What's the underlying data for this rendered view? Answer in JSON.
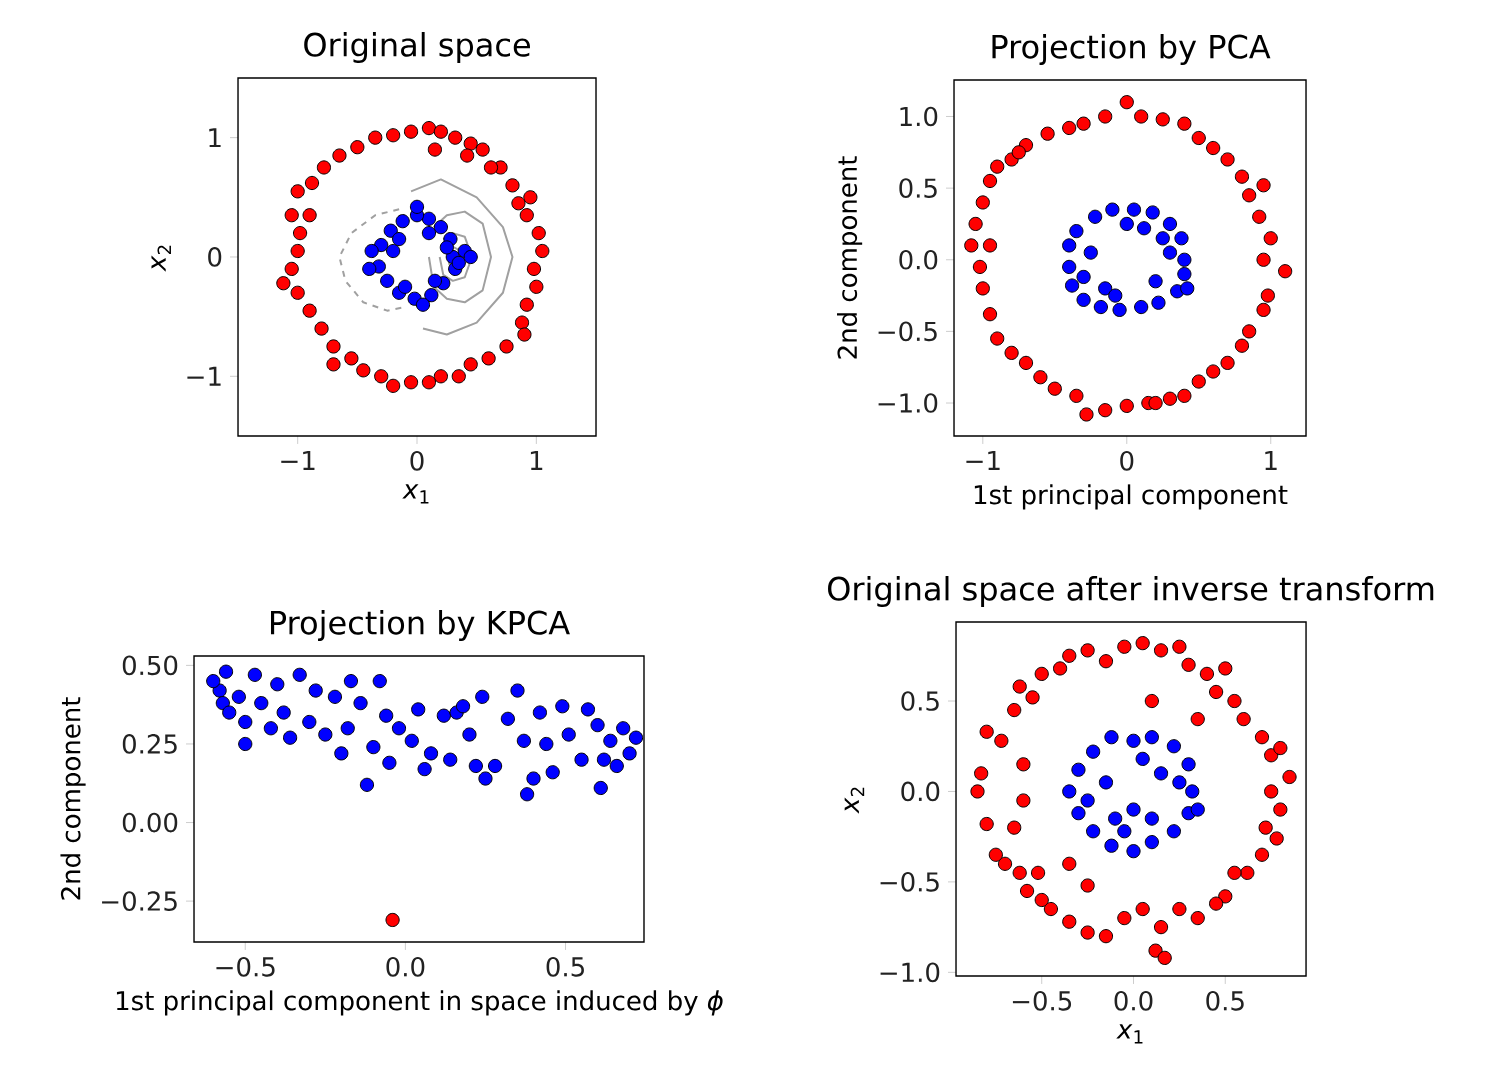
{
  "chart_data": [
    {
      "type": "scatter",
      "title": "Original space",
      "xlabel": "*x*$_{1}$",
      "ylabel": "*x*$_{2}$",
      "xlim": [
        -1.5,
        1.5
      ],
      "ylim": [
        -1.5,
        1.5
      ],
      "xticks": [
        {
          "value": -1,
          "label": "−1"
        },
        0,
        1
      ],
      "yticks": [
        {
          "value": -1,
          "label": "−1"
        },
        0,
        1
      ],
      "marker": "circle",
      "series": [
        {
          "type": "line",
          "marker": "none",
          "line_style": "dashed",
          "color": "#a0a0a0",
          "x": [
            -0.15,
            -0.35,
            -0.55,
            -0.65,
            -0.6,
            -0.45,
            -0.25,
            -0.1
          ],
          "values": [
            0.4,
            0.35,
            0.2,
            0.0,
            -0.2,
            -0.38,
            -0.45,
            -0.42
          ]
        },
        {
          "type": "line",
          "marker": "none",
          "line_style": "solid",
          "color": "#a0a0a0",
          "x": [
            -0.05,
            0.2,
            0.5,
            0.72,
            0.8,
            0.72,
            0.5,
            0.25,
            0.05
          ],
          "values": [
            0.55,
            0.65,
            0.5,
            0.25,
            0.0,
            -0.3,
            -0.55,
            -0.65,
            -0.6
          ]
        },
        {
          "type": "line",
          "marker": "none",
          "line_style": "solid",
          "color": "#a0a0a0",
          "x": [
            0.14,
            0.25,
            0.4,
            0.55,
            0.62,
            0.55,
            0.4,
            0.25,
            0.14,
            0.1
          ],
          "values": [
            0.25,
            0.35,
            0.38,
            0.28,
            0.0,
            -0.28,
            -0.38,
            -0.35,
            -0.25,
            0.0
          ]
        },
        {
          "type": "line",
          "marker": "none",
          "line_style": "solid",
          "color": "#a0a0a0",
          "x": [
            0.22,
            0.3,
            0.4,
            0.46,
            0.4,
            0.3,
            0.22,
            0.19
          ],
          "values": [
            0.15,
            0.2,
            0.17,
            0.0,
            -0.17,
            -0.2,
            -0.15,
            0.0
          ]
        },
        {
          "type": "line",
          "marker": "none",
          "line_style": "solid",
          "color": "#a0a0a0",
          "x": [
            0.27,
            0.31,
            0.35,
            0.36,
            0.35,
            0.31,
            0.27,
            0.26
          ],
          "values": [
            0.06,
            0.08,
            0.06,
            0.0,
            -0.06,
            -0.08,
            -0.06,
            0.0
          ]
        },
        {
          "color": "#ff0000",
          "x": [
            0.1,
            0.2,
            0.32,
            0.45,
            0.55,
            0.7,
            0.8,
            0.95,
            0.92,
            1.02,
            1.05,
            0.98,
            1.0,
            0.92,
            0.88,
            0.9,
            0.75,
            0.6,
            0.45,
            0.35,
            0.2,
            0.1,
            -0.05,
            -0.2,
            -0.3,
            -0.45,
            -0.55,
            -0.7,
            -0.8,
            -0.9,
            -1.0,
            -1.12,
            -1.05,
            -1.0,
            -0.98,
            -1.05,
            -1.0,
            -0.88,
            -0.78,
            -0.65,
            -0.5,
            -0.35,
            -0.2,
            -0.05,
            0.15,
            0.42,
            0.62,
            0.85,
            -0.9,
            -0.7
          ],
          "values": [
            1.08,
            1.05,
            1.0,
            0.95,
            0.9,
            0.75,
            0.6,
            0.5,
            0.35,
            0.2,
            0.05,
            -0.1,
            -0.25,
            -0.4,
            -0.55,
            -0.65,
            -0.75,
            -0.85,
            -0.9,
            -1.0,
            -1.0,
            -1.05,
            -1.05,
            -1.08,
            -1.0,
            -0.95,
            -0.85,
            -0.75,
            -0.6,
            -0.45,
            -0.3,
            -0.22,
            -0.1,
            0.05,
            0.2,
            0.35,
            0.55,
            0.62,
            0.75,
            0.85,
            0.92,
            1.0,
            1.02,
            1.05,
            0.9,
            0.85,
            0.75,
            0.45,
            0.35,
            -0.9
          ]
        },
        {
          "color": "#0000ff",
          "x": [
            0.3,
            0.28,
            0.2,
            0.1,
            0.0,
            -0.12,
            -0.22,
            -0.3,
            -0.38,
            -0.32,
            -0.25,
            -0.15,
            -0.02,
            0.12,
            0.22,
            0.32,
            0.4,
            0.25,
            -0.2,
            0.0,
            -0.1,
            0.15,
            0.35,
            -0.4,
            0.1,
            -0.15,
            0.45,
            0.05
          ],
          "values": [
            0.0,
            0.15,
            0.25,
            0.32,
            0.35,
            0.3,
            0.22,
            0.1,
            0.05,
            -0.08,
            -0.2,
            -0.3,
            -0.35,
            -0.32,
            -0.22,
            -0.1,
            0.05,
            0.08,
            0.05,
            0.42,
            -0.25,
            -0.2,
            -0.05,
            -0.1,
            0.2,
            0.15,
            0.0,
            -0.4
          ]
        }
      ]
    },
    {
      "type": "scatter",
      "title": "Projection by PCA",
      "xlabel": "1st principal component",
      "ylabel": "2nd component",
      "xlim": [
        -1.2,
        1.245
      ],
      "ylim": [
        -1.23,
        1.255
      ],
      "xticks": [
        {
          "value": -1,
          "label": "−1"
        },
        0,
        1
      ],
      "yticks": [
        {
          "value": -1,
          "label": "−1.0"
        },
        {
          "value": -0.5,
          "label": "−0.5"
        },
        {
          "value": 0,
          "label": "0.0"
        },
        0.5,
        {
          "value": 1,
          "label": "1.0"
        }
      ],
      "marker": "circle",
      "series": [
        {
          "color": "#ff0000",
          "x": [
            -1.08,
            -1.05,
            -1.0,
            -0.95,
            -0.9,
            -0.8,
            -0.7,
            -0.55,
            -0.4,
            -0.3,
            -0.15,
            0.0,
            0.1,
            0.25,
            0.4,
            0.5,
            0.6,
            0.7,
            0.8,
            0.85,
            0.95,
            0.92,
            1.0,
            0.95,
            1.1,
            0.98,
            0.95,
            0.85,
            0.8,
            0.7,
            0.6,
            0.5,
            0.4,
            0.3,
            0.15,
            0.0,
            -0.15,
            -0.28,
            -0.35,
            -0.5,
            -0.6,
            -0.7,
            -0.8,
            -0.9,
            -0.95,
            -1.0,
            -1.02,
            -0.95,
            -0.75,
            0.2
          ],
          "values": [
            0.1,
            0.25,
            0.4,
            0.55,
            0.65,
            0.7,
            0.8,
            0.88,
            0.92,
            0.95,
            1.0,
            1.1,
            1.0,
            0.98,
            0.95,
            0.85,
            0.78,
            0.7,
            0.58,
            0.45,
            0.52,
            0.3,
            0.15,
            0.0,
            -0.08,
            -0.25,
            -0.35,
            -0.5,
            -0.6,
            -0.72,
            -0.78,
            -0.85,
            -0.95,
            -0.97,
            -1.0,
            -1.02,
            -1.05,
            -1.08,
            -0.95,
            -0.9,
            -0.82,
            -0.72,
            -0.65,
            -0.55,
            -0.38,
            -0.2,
            -0.05,
            0.1,
            0.75,
            -1.0
          ]
        },
        {
          "color": "#0000ff",
          "x": [
            0.4,
            0.38,
            0.3,
            0.18,
            0.05,
            -0.1,
            -0.22,
            -0.35,
            -0.4,
            -0.4,
            -0.38,
            -0.3,
            -0.18,
            -0.05,
            0.1,
            0.22,
            0.35,
            0.4,
            0.25,
            -0.25,
            0.2,
            -0.15,
            0.0,
            0.3,
            -0.3,
            0.12,
            -0.08,
            0.42
          ],
          "values": [
            0.0,
            0.15,
            0.25,
            0.33,
            0.35,
            0.35,
            0.3,
            0.2,
            0.1,
            -0.05,
            -0.18,
            -0.28,
            -0.33,
            -0.35,
            -0.33,
            -0.3,
            -0.22,
            -0.1,
            0.15,
            0.05,
            -0.15,
            -0.2,
            0.25,
            0.05,
            -0.12,
            0.22,
            -0.25,
            -0.2
          ]
        }
      ]
    },
    {
      "type": "scatter",
      "title": "Projection by KPCA",
      "xlabel": "1st principal component in space induced by *ϕ*",
      "ylabel": "2nd component",
      "xlim": [
        -0.66,
        0.745
      ],
      "ylim": [
        -0.38,
        0.53
      ],
      "xticks": [
        {
          "value": -0.5,
          "label": "−0.5"
        },
        {
          "value": 0,
          "label": "0.0"
        },
        0.5
      ],
      "yticks": [
        {
          "value": -0.25,
          "label": "−0.25"
        },
        {
          "value": 0,
          "label": "0.00"
        },
        0.25,
        {
          "value": 0.5,
          "label": "0.50"
        }
      ],
      "marker": "circle",
      "series": [
        {
          "color": "#0000ff",
          "x": [
            -0.58,
            -0.6,
            -0.56,
            -0.57,
            -0.52,
            -0.5,
            -0.47,
            -0.45,
            -0.42,
            -0.4,
            -0.38,
            -0.36,
            -0.33,
            -0.3,
            -0.28,
            -0.25,
            -0.22,
            -0.2,
            -0.18,
            -0.17,
            -0.14,
            -0.12,
            -0.1,
            -0.08,
            -0.06,
            -0.05,
            -0.02,
            0.02,
            0.04,
            0.06,
            0.08,
            0.12,
            0.14,
            0.16,
            0.18,
            0.2,
            0.22,
            0.24,
            0.25,
            0.28,
            0.32,
            0.35,
            0.37,
            0.38,
            0.4,
            0.42,
            0.44,
            0.46,
            0.49,
            0.51,
            0.55,
            0.57,
            0.6,
            0.61,
            0.62,
            0.64,
            0.66,
            0.68,
            0.7,
            0.72,
            -0.5,
            -0.55
          ],
          "values": [
            0.42,
            0.45,
            0.48,
            0.38,
            0.4,
            0.32,
            0.47,
            0.38,
            0.3,
            0.44,
            0.35,
            0.27,
            0.47,
            0.32,
            0.42,
            0.28,
            0.4,
            0.22,
            0.3,
            0.45,
            0.38,
            0.12,
            0.24,
            0.45,
            0.34,
            0.19,
            0.3,
            0.26,
            0.36,
            0.17,
            0.22,
            0.34,
            0.2,
            0.35,
            0.37,
            0.28,
            0.18,
            0.4,
            0.14,
            0.18,
            0.33,
            0.42,
            0.26,
            0.09,
            0.14,
            0.35,
            0.25,
            0.16,
            0.37,
            0.28,
            0.2,
            0.36,
            0.31,
            0.11,
            0.2,
            0.26,
            0.18,
            0.3,
            0.22,
            0.27,
            0.25,
            0.35
          ]
        },
        {
          "color": "#ff0000",
          "x": [
            -0.04
          ],
          "values": [
            -0.31
          ]
        }
      ]
    },
    {
      "type": "scatter",
      "title": "Original space after inverse transform",
      "xlabel": "*x*$_{1}$",
      "ylabel": "*x*$_{2}$",
      "xlim": [
        -0.967,
        0.94
      ],
      "ylim": [
        -1.02,
        0.937
      ],
      "xticks": [
        {
          "value": -0.5,
          "label": "−0.5"
        },
        {
          "value": 0,
          "label": "0.0"
        },
        0.5
      ],
      "yticks": [
        {
          "value": -1,
          "label": "−1.0"
        },
        {
          "value": -0.5,
          "label": "−0.5"
        },
        {
          "value": 0,
          "label": "0.0"
        },
        0.5
      ],
      "marker": "circle",
      "series": [
        {
          "color": "#ff0000",
          "x": [
            -0.85,
            -0.83,
            -0.8,
            -0.72,
            -0.65,
            -0.62,
            -0.55,
            -0.5,
            -0.4,
            -0.35,
            -0.25,
            -0.15,
            -0.05,
            0.05,
            0.15,
            0.25,
            0.3,
            0.4,
            0.45,
            0.5,
            0.55,
            0.6,
            0.7,
            0.75,
            0.8,
            0.85,
            0.75,
            0.8,
            0.72,
            0.78,
            0.7,
            0.62,
            0.55,
            0.5,
            0.45,
            0.35,
            0.25,
            0.15,
            0.12,
            0.17,
            0.05,
            -0.05,
            -0.15,
            -0.25,
            -0.35,
            -0.45,
            -0.5,
            -0.58,
            -0.62,
            -0.7,
            -0.75,
            -0.8,
            -0.65,
            -0.6,
            -0.6,
            -0.52,
            0.1,
            -0.25,
            0.35,
            -0.35
          ],
          "values": [
            0.0,
            0.1,
            0.33,
            0.28,
            0.45,
            0.58,
            0.52,
            0.65,
            0.68,
            0.75,
            0.78,
            0.72,
            0.8,
            0.82,
            0.78,
            0.8,
            0.7,
            0.65,
            0.55,
            0.68,
            0.5,
            0.4,
            0.3,
            0.2,
            0.24,
            0.08,
            0.0,
            -0.1,
            -0.2,
            -0.26,
            -0.35,
            -0.45,
            -0.45,
            -0.58,
            -0.62,
            -0.7,
            -0.65,
            -0.75,
            -0.88,
            -0.92,
            -0.65,
            -0.7,
            -0.8,
            -0.78,
            -0.72,
            -0.65,
            -0.6,
            -0.55,
            -0.45,
            -0.4,
            -0.35,
            -0.18,
            -0.2,
            -0.05,
            0.15,
            -0.45,
            0.5,
            -0.52,
            0.4,
            -0.4
          ]
        },
        {
          "color": "#0000ff",
          "x": [
            0.32,
            0.3,
            0.22,
            0.1,
            0.0,
            -0.12,
            -0.22,
            -0.3,
            -0.35,
            -0.3,
            -0.22,
            -0.12,
            0.0,
            0.1,
            0.22,
            0.3,
            0.15,
            -0.15,
            0.1,
            -0.1,
            0.25,
            -0.25,
            0.05,
            -0.05,
            0.0,
            0.35
          ],
          "values": [
            0.0,
            0.15,
            0.25,
            0.3,
            0.28,
            0.3,
            0.22,
            0.12,
            0.0,
            -0.12,
            -0.22,
            -0.3,
            -0.33,
            -0.28,
            -0.22,
            -0.12,
            0.1,
            0.05,
            -0.15,
            -0.15,
            0.05,
            -0.05,
            0.18,
            -0.22,
            -0.1,
            -0.1
          ]
        }
      ]
    }
  ]
}
